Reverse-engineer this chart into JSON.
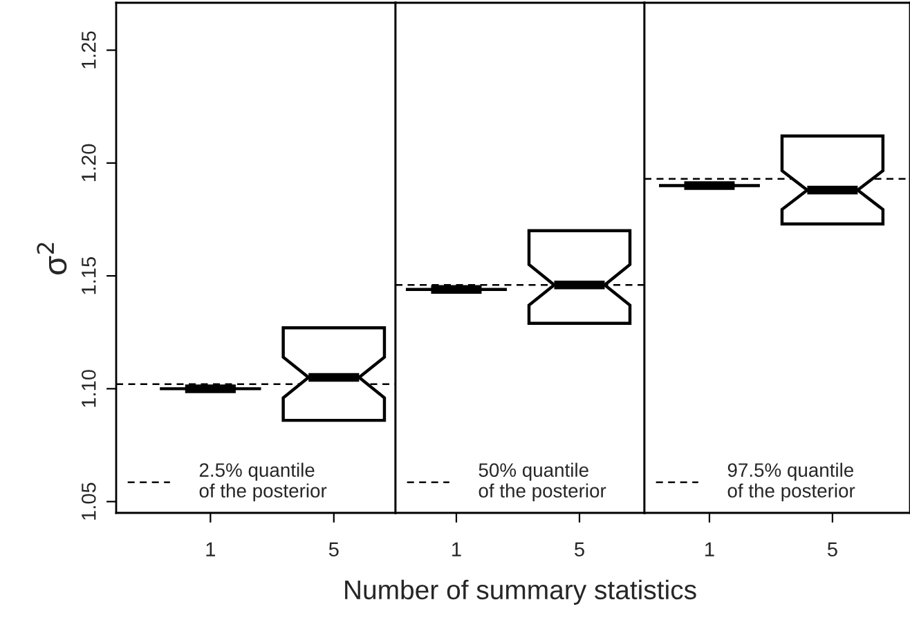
{
  "chart_data": [
    {
      "type": "box",
      "ylabel": "σ$^{2}$",
      "categories": [
        "1",
        "5"
      ],
      "boxes": [
        {
          "low": 1.1,
          "q1": 1.1,
          "median": 1.1,
          "q3": 1.1,
          "high": 1.1
        },
        {
          "low": 1.086,
          "q1": 1.086,
          "median": 1.105,
          "q3": 1.127,
          "high": 1.127
        }
      ],
      "ylim": [
        1.045,
        1.271
      ],
      "yticks": [
        {
          "value": 1.05,
          "label": "1.05"
        },
        {
          "value": 1.1,
          "label": "1.10"
        },
        {
          "value": 1.15,
          "label": "1.15"
        },
        {
          "value": 1.2,
          "label": "1.20"
        },
        {
          "value": 1.25,
          "label": "1.25"
        }
      ],
      "ref_lines": [
        {
          "axis": "y",
          "value": 1.102,
          "label": "2.5% quantile\nof the posterior",
          "line_style": "dashed",
          "color": "#000000"
        }
      ],
      "legend": "bottom left",
      "grid": false
    },
    {
      "type": "box",
      "xlabel": "Number of summary statistics",
      "categories": [
        "1",
        "5"
      ],
      "boxes": [
        {
          "low": 1.144,
          "q1": 1.144,
          "median": 1.144,
          "q3": 1.144,
          "high": 1.144
        },
        {
          "low": 1.129,
          "q1": 1.129,
          "median": 1.146,
          "q3": 1.17,
          "high": 1.17
        }
      ],
      "ylim": [
        1.045,
        1.271
      ],
      "tick_labels": "x",
      "ref_lines": [
        {
          "axis": "y",
          "value": 1.146,
          "label": "50% quantile\nof the posterior",
          "line_style": "dashed",
          "color": "#000000"
        }
      ],
      "legend": "bottom left",
      "grid": false
    },
    {
      "type": "box",
      "categories": [
        "1",
        "5"
      ],
      "boxes": [
        {
          "low": 1.19,
          "q1": 1.19,
          "median": 1.19,
          "q3": 1.19,
          "high": 1.19
        },
        {
          "low": 1.173,
          "q1": 1.173,
          "median": 1.188,
          "q3": 1.212,
          "high": 1.212
        }
      ],
      "ylim": [
        1.045,
        1.271
      ],
      "tick_labels": "x",
      "ref_lines": [
        {
          "axis": "y",
          "value": 1.193,
          "label": "97.5% quantile\nof the posterior",
          "line_style": "dashed",
          "color": "#000000"
        }
      ],
      "legend": "bottom left",
      "grid": false
    }
  ]
}
